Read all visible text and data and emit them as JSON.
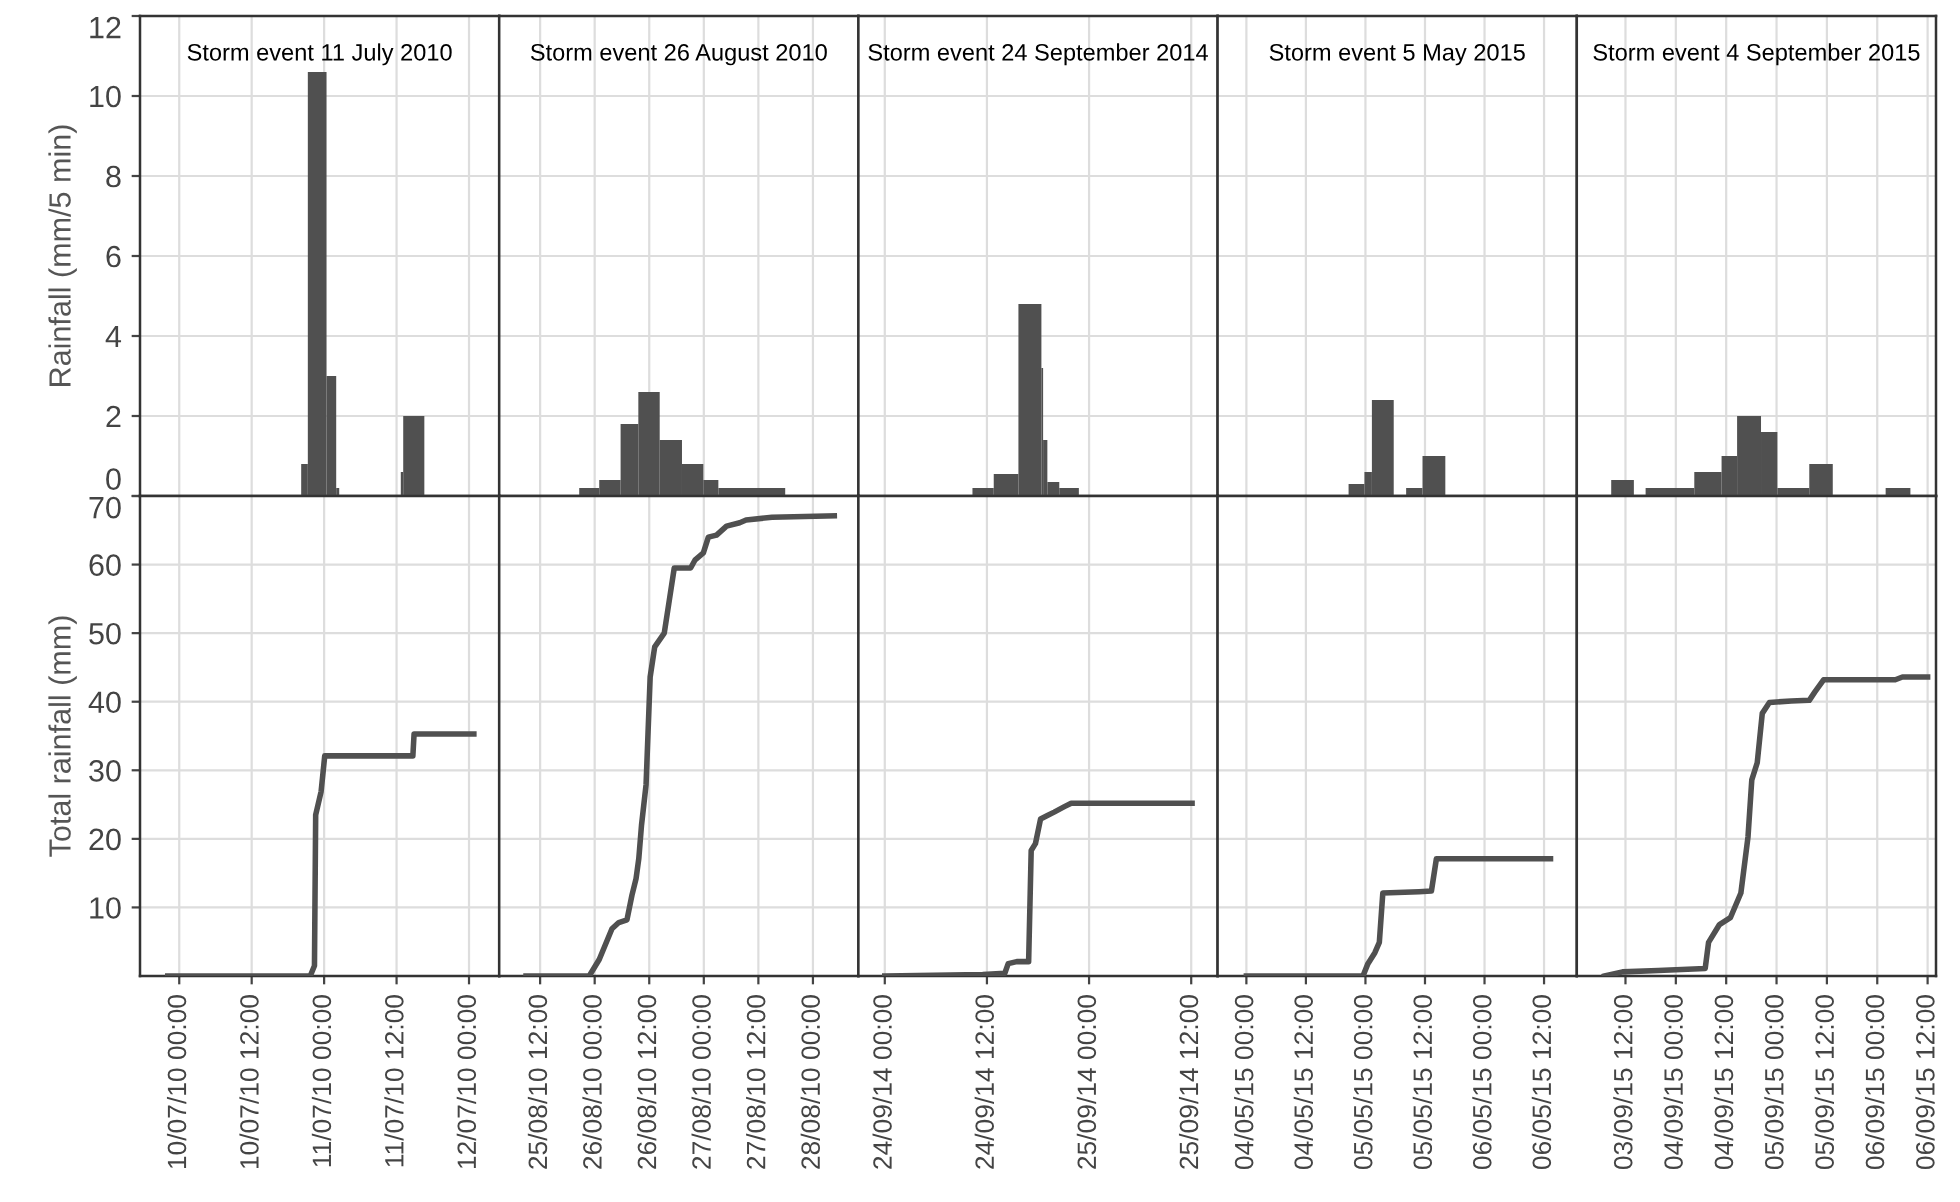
{
  "chart_data": [
    {
      "type": "histogram",
      "title": "Storm event 11 July 2010",
      "ylabel": "Rainfall (mm/5 min)",
      "color": "#505050",
      "bins": [
        "2010-07-10T20:12",
        "2010-07-10T21:18",
        "2010-07-11T00:24",
        "2010-07-11T02:00",
        "2010-07-11T02:30",
        "2010-07-11T12:42",
        "2010-07-11T13:06",
        "2010-07-11T16:36"
      ],
      "values": [
        0.8,
        10.6,
        3.0,
        0.2,
        null,
        0.6,
        2.0
      ],
      "xlim": [
        "2010-07-09T17:30",
        "2010-07-12T05:00"
      ],
      "xticks": [
        {
          "value": "2010-07-10T00:00",
          "label": null
        },
        {
          "value": "2010-07-10T12:00",
          "label": null
        },
        {
          "value": "2010-07-11T00:00",
          "label": null
        },
        {
          "value": "2010-07-11T12:00",
          "label": null
        },
        {
          "value": "2010-07-12T00:00",
          "label": null
        }
      ],
      "ylim": [
        0,
        12
      ],
      "yticks": [
        0,
        2,
        4,
        6,
        8,
        10,
        12
      ],
      "grid": true,
      "tick_labels": "y"
    },
    {
      "type": "histogram",
      "title": "Storm event 26 August 2010",
      "color": "#505050",
      "bins": [
        "2010-08-25T20:36",
        "2010-08-26T01:00",
        "2010-08-26T05:42",
        "2010-08-26T09:36",
        "2010-08-26T14:18",
        "2010-08-26T19:12",
        "2010-08-26T23:54",
        "2010-08-27T03:12",
        "2010-08-27T17:54"
      ],
      "values": [
        0.2,
        0.4,
        1.8,
        2.6,
        1.4,
        0.8,
        0.4,
        0.2
      ],
      "xlim": [
        "2010-08-25T03:00",
        "2010-08-28T10:00"
      ],
      "xticks": [
        {
          "value": "2010-08-25T12:00",
          "label": null
        },
        {
          "value": "2010-08-26T00:00",
          "label": null
        },
        {
          "value": "2010-08-26T12:00",
          "label": null
        },
        {
          "value": "2010-08-27T00:00",
          "label": null
        },
        {
          "value": "2010-08-27T12:00",
          "label": null
        },
        {
          "value": "2010-08-28T00:00",
          "label": null
        }
      ],
      "ylim": [
        0,
        12
      ],
      "yticks": [
        0,
        2,
        4,
        6,
        8,
        10,
        12
      ],
      "grid": true,
      "tick_labels": false
    },
    {
      "type": "histogram",
      "title": "Storm event 24 September 2014",
      "color": "#505050",
      "bins": [
        "2014-09-24T10:18",
        "2014-09-24T12:48",
        "2014-09-24T15:42",
        "2014-09-24T18:24",
        "2014-09-24T18:36",
        "2014-09-24T19:06",
        "2014-09-24T20:30",
        "2014-09-24T22:48"
      ],
      "values": [
        0.2,
        0.55,
        4.8,
        3.2,
        1.4,
        0.35,
        0.2
      ],
      "xlim": [
        "2014-09-23T20:54",
        "2014-09-25T15:06"
      ],
      "xticks": [
        {
          "value": "2014-09-24T00:00",
          "label": null
        },
        {
          "value": "2014-09-24T12:00",
          "label": null
        },
        {
          "value": "2014-09-25T00:00",
          "label": null
        },
        {
          "value": "2014-09-25T12:00",
          "label": null
        }
      ],
      "ylim": [
        0,
        12
      ],
      "yticks": [
        0,
        2,
        4,
        6,
        8,
        10,
        12
      ],
      "grid": true,
      "tick_labels": false
    },
    {
      "type": "histogram",
      "title": "Storm event 5 May 2015",
      "color": "#505050",
      "bins": [
        "2015-05-04T20:36",
        "2015-05-04T23:48",
        "2015-05-05T01:18",
        "2015-05-05T05:42",
        "2015-05-05T08:12",
        "2015-05-05T11:30",
        "2015-05-05T16:06"
      ],
      "values": [
        0.3,
        0.6,
        2.4,
        null,
        0.2,
        1.0
      ],
      "xlim": [
        "2015-05-03T18:12",
        "2015-05-06T18:36"
      ],
      "xticks": [
        {
          "value": "2015-05-04T00:00",
          "label": null
        },
        {
          "value": "2015-05-04T12:00",
          "label": null
        },
        {
          "value": "2015-05-05T00:00",
          "label": null
        },
        {
          "value": "2015-05-05T12:00",
          "label": null
        },
        {
          "value": "2015-05-06T00:00",
          "label": null
        },
        {
          "value": "2015-05-06T12:00",
          "label": null
        }
      ],
      "ylim": [
        0,
        12
      ],
      "yticks": [
        0,
        2,
        4,
        6,
        8,
        10,
        12
      ],
      "grid": true,
      "tick_labels": false
    },
    {
      "type": "histogram",
      "title": "Storm event 4 September 2015",
      "color": "#505050",
      "bins": [
        "2015-09-03T08:36",
        "2015-09-03T14:00",
        "2015-09-03T16:48",
        "2015-09-04T04:24",
        "2015-09-04T10:54",
        "2015-09-04T14:36",
        "2015-09-04T20:18",
        "2015-09-05T00:12",
        "2015-09-05T07:48",
        "2015-09-05T13:24",
        "2015-09-06T02:00",
        "2015-09-06T07:54"
      ],
      "values": [
        0.4,
        null,
        0.2,
        0.6,
        1.0,
        2.0,
        1.6,
        0.2,
        0.8,
        null,
        0.2
      ],
      "xlim": [
        "2015-09-03T00:24",
        "2015-09-06T14:00"
      ],
      "xticks": [
        {
          "value": "2015-09-03T12:00",
          "label": null
        },
        {
          "value": "2015-09-04T00:00",
          "label": null
        },
        {
          "value": "2015-09-04T12:00",
          "label": null
        },
        {
          "value": "2015-09-05T00:00",
          "label": null
        },
        {
          "value": "2015-09-05T12:00",
          "label": null
        },
        {
          "value": "2015-09-06T00:00",
          "label": null
        },
        {
          "value": "2015-09-06T12:00",
          "label": null
        }
      ],
      "ylim": [
        0,
        12
      ],
      "yticks": [
        0,
        2,
        4,
        6,
        8,
        10,
        12
      ],
      "grid": true,
      "tick_labels": false
    },
    {
      "type": "line",
      "ylabel": "Total rainfall (mm)",
      "color": "#505050",
      "x": [
        "2010-07-09T22:06",
        "2010-07-10T21:42",
        "2010-07-10T22:24",
        "2010-07-10T22:36",
        "2010-07-10T23:30",
        "2010-07-11T00:06",
        "2010-07-11T14:42",
        "2010-07-11T14:54",
        "2010-07-12T00:48"
      ],
      "values": [
        0,
        0,
        1.5,
        23.5,
        26.9,
        32.1,
        32.1,
        35.3,
        35.3
      ],
      "xlim": [
        "2010-07-09T17:30",
        "2010-07-12T05:00"
      ],
      "xticks": [
        {
          "value": "2010-07-10T00:00",
          "label": "10/07/10 00:00"
        },
        {
          "value": "2010-07-10T12:00",
          "label": "10/07/10 12:00"
        },
        {
          "value": "2010-07-11T00:00",
          "label": "11/07/10 00:00"
        },
        {
          "value": "2010-07-11T12:00",
          "label": "11/07/10 12:00"
        },
        {
          "value": "2010-07-12T00:00",
          "label": "12/07/10 00:00"
        }
      ],
      "ylim": [
        0,
        70
      ],
      "yticks": [
        10,
        20,
        30,
        40,
        50,
        60,
        70
      ],
      "grid": true
    },
    {
      "type": "line",
      "color": "#505050",
      "x": [
        "2010-08-25T08:54",
        "2010-08-25T22:48",
        "2010-08-26T01:00",
        "2010-08-26T03:48",
        "2010-08-26T05:18",
        "2010-08-26T07:06",
        "2010-08-26T08:12",
        "2010-08-26T09:06",
        "2010-08-26T09:42",
        "2010-08-26T10:18",
        "2010-08-26T11:18",
        "2010-08-26T12:12",
        "2010-08-26T13:12",
        "2010-08-26T15:18",
        "2010-08-26T16:18",
        "2010-08-26T17:30",
        "2010-08-26T21:06",
        "2010-08-26T22:06",
        "2010-08-26T23:54",
        "2010-08-27T01:00",
        "2010-08-27T02:48",
        "2010-08-27T05:00",
        "2010-08-27T07:54",
        "2010-08-27T09:18",
        "2010-08-27T15:00",
        "2010-08-28T04:42"
      ],
      "values": [
        0,
        0,
        2.4,
        6.9,
        7.8,
        8.2,
        11.8,
        14.2,
        17.1,
        22.0,
        27.9,
        43.6,
        48.0,
        50.0,
        54.3,
        59.5,
        59.5,
        60.7,
        61.7,
        64.0,
        64.3,
        65.6,
        66.1,
        66.5,
        66.9,
        67.1
      ],
      "xlim": [
        "2010-08-25T03:00",
        "2010-08-28T10:00"
      ],
      "xticks": [
        {
          "value": "2010-08-25T12:00",
          "label": "25/08/10 12:00"
        },
        {
          "value": "2010-08-26T00:00",
          "label": "26/08/10 00:00"
        },
        {
          "value": "2010-08-26T12:00",
          "label": "26/08/10 12:00"
        },
        {
          "value": "2010-08-27T00:00",
          "label": "27/08/10 00:00"
        },
        {
          "value": "2010-08-27T12:00",
          "label": "27/08/10 12:00"
        },
        {
          "value": "2010-08-28T00:00",
          "label": "28/08/10 00:00"
        }
      ],
      "ylim": [
        0,
        70
      ],
      "yticks": [
        10,
        20,
        30,
        40,
        50,
        60,
        70
      ],
      "grid": true,
      "tick_labels": "x"
    },
    {
      "type": "line",
      "color": "#505050",
      "x": [
        "2014-09-24T00:00",
        "2014-09-24T11:30",
        "2014-09-24T14:06",
        "2014-09-24T14:30",
        "2014-09-24T15:30",
        "2014-09-24T16:54",
        "2014-09-24T17:12",
        "2014-09-24T17:42",
        "2014-09-24T18:18",
        "2014-09-24T19:06",
        "2014-09-24T19:54",
        "2014-09-24T21:06",
        "2014-09-24T21:54",
        "2014-09-25T12:06"
      ],
      "values": [
        0,
        0.2,
        0.4,
        1.8,
        2.1,
        2.1,
        18.3,
        19.3,
        22.9,
        23.4,
        23.9,
        24.7,
        25.2,
        25.2
      ],
      "xlim": [
        "2014-09-23T20:54",
        "2014-09-25T15:06"
      ],
      "xticks": [
        {
          "value": "2014-09-24T00:00",
          "label": "24/09/14 00:00"
        },
        {
          "value": "2014-09-24T12:00",
          "label": "24/09/14 12:00"
        },
        {
          "value": "2014-09-25T00:00",
          "label": "25/09/14 00:00"
        },
        {
          "value": "2014-09-25T12:00",
          "label": "25/09/14 12:00"
        }
      ],
      "ylim": [
        0,
        70
      ],
      "yticks": [
        10,
        20,
        30,
        40,
        50,
        60,
        70
      ],
      "grid": true,
      "tick_labels": "x"
    },
    {
      "type": "line",
      "color": "#505050",
      "x": [
        "2015-05-04T00:00",
        "2015-05-04T23:30",
        "2015-05-05T00:30",
        "2015-05-05T01:54",
        "2015-05-05T02:48",
        "2015-05-05T03:30",
        "2015-05-05T10:48",
        "2015-05-05T13:18",
        "2015-05-05T14:18",
        "2015-05-06T13:18"
      ],
      "values": [
        0,
        0,
        1.8,
        3.4,
        4.9,
        12.1,
        12.3,
        12.4,
        17.1,
        17.1
      ],
      "xlim": [
        "2015-05-03T18:12",
        "2015-05-06T18:36"
      ],
      "xticks": [
        {
          "value": "2015-05-04T00:00",
          "label": "04/05/15 00:00"
        },
        {
          "value": "2015-05-04T12:00",
          "label": "04/05/15 12:00"
        },
        {
          "value": "2015-05-05T00:00",
          "label": "05/05/15 00:00"
        },
        {
          "value": "2015-05-05T12:00",
          "label": "05/05/15 12:00"
        },
        {
          "value": "2015-05-06T00:00",
          "label": "06/05/15 00:00"
        },
        {
          "value": "2015-05-06T12:00",
          "label": "06/05/15 12:00"
        }
      ],
      "ylim": [
        0,
        70
      ],
      "yticks": [
        10,
        20,
        30,
        40,
        50,
        60,
        70
      ],
      "grid": true,
      "tick_labels": "x"
    },
    {
      "type": "line",
      "color": "#505050",
      "x": [
        "2015-09-03T07:00",
        "2015-09-03T11:18",
        "2015-09-03T19:48",
        "2015-09-04T07:00",
        "2015-09-04T07:48",
        "2015-09-04T10:24",
        "2015-09-04T13:00",
        "2015-09-04T15:30",
        "2015-09-04T17:12",
        "2015-09-04T18:06",
        "2015-09-04T19:24",
        "2015-09-04T20:36",
        "2015-09-04T22:18",
        "2015-09-05T03:30",
        "2015-09-05T07:48",
        "2015-09-05T09:06",
        "2015-09-05T11:12",
        "2015-09-06T04:18",
        "2015-09-06T06:00",
        "2015-09-06T12:00"
      ],
      "values": [
        0,
        0.6,
        0.8,
        1.1,
        4.9,
        7.5,
        8.5,
        12.1,
        20.3,
        28.6,
        31.1,
        38.3,
        39.9,
        40.1,
        40.2,
        41.4,
        43.2,
        43.2,
        43.6,
        43.6
      ],
      "xlim": [
        "2015-09-03T00:24",
        "2015-09-06T14:00"
      ],
      "xticks": [
        {
          "value": "2015-09-03T12:00",
          "label": "03/09/15 12:00"
        },
        {
          "value": "2015-09-04T00:00",
          "label": "04/09/15 00:00"
        },
        {
          "value": "2015-09-04T12:00",
          "label": "04/09/15 12:00"
        },
        {
          "value": "2015-09-05T00:00",
          "label": "05/09/15 00:00"
        },
        {
          "value": "2015-09-05T12:00",
          "label": "05/09/15 12:00"
        },
        {
          "value": "2015-09-06T00:00",
          "label": "06/09/15 00:00"
        },
        {
          "value": "2015-09-06T12:00",
          "label": "06/09/15 12:00"
        }
      ],
      "ylim": [
        0,
        70
      ],
      "yticks": [
        10,
        20,
        30,
        40,
        50,
        60,
        70
      ],
      "grid": true,
      "tick_labels": "x"
    }
  ]
}
